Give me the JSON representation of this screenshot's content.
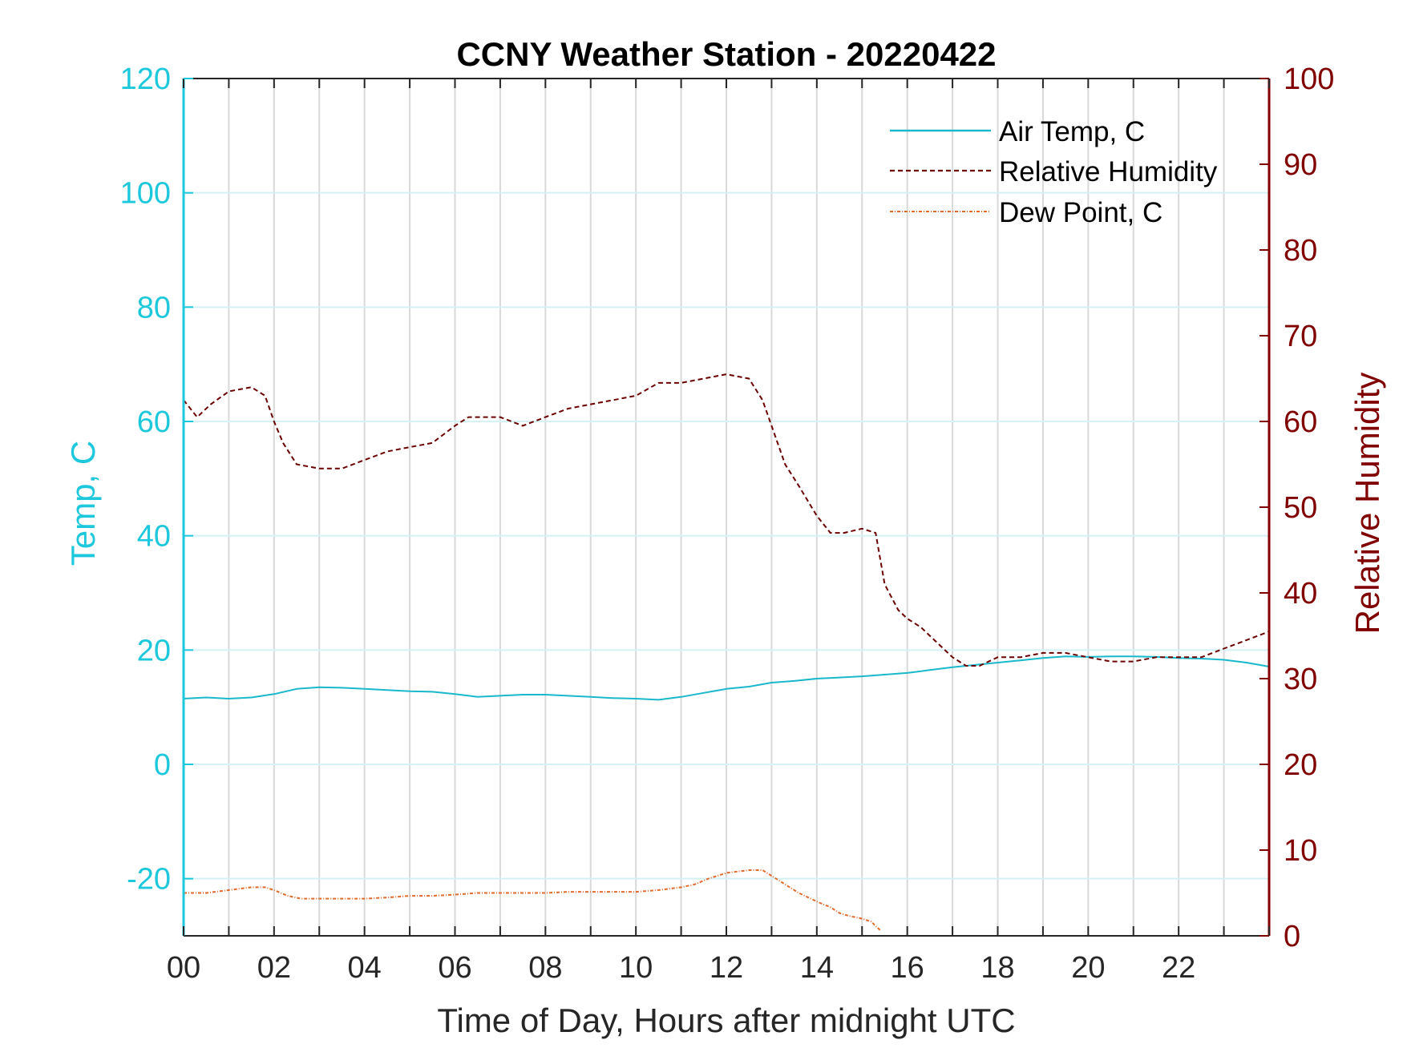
{
  "chart_data": {
    "type": "line",
    "title": "CCNY Weather Station - 20220422",
    "xlabel": "Time of Day, Hours after midnight UTC",
    "ylabel_left": "Temp, C",
    "ylabel_right": "Relative Humidity",
    "xlim": [
      0,
      24
    ],
    "ylim_left": [
      -30,
      120
    ],
    "ylim_right": [
      0,
      100
    ],
    "x_ticks": [
      0,
      2,
      4,
      6,
      8,
      10,
      12,
      14,
      16,
      18,
      20,
      22
    ],
    "x_tick_labels": [
      "00",
      "02",
      "04",
      "06",
      "08",
      "10",
      "12",
      "14",
      "16",
      "18",
      "20",
      "22"
    ],
    "y_left_ticks": [
      -20,
      0,
      20,
      40,
      60,
      80,
      100,
      120
    ],
    "y_left_tick_labels": [
      "-20",
      "0",
      "20",
      "40",
      "60",
      "80",
      "100",
      "120"
    ],
    "y_right_ticks": [
      0,
      10,
      20,
      30,
      40,
      50,
      60,
      70,
      80,
      90,
      100
    ],
    "y_right_tick_labels": [
      "0",
      "10",
      "20",
      "30",
      "40",
      "50",
      "60",
      "70",
      "80",
      "90",
      "100"
    ],
    "grid": "vertical lines every hour, horizontal lines at left-axis ticks",
    "legend_position": "top-right",
    "colors": {
      "left_axis": "#1ec8dc",
      "right_axis": "#800000",
      "air_temp": "#1ab8cc",
      "humidity": "#6b0000",
      "dew_point": "#e06a2a",
      "grid_vertical": "#d9d9d9",
      "grid_horizontal": "#d4f1f6"
    },
    "series": [
      {
        "name": "Air Temp, C",
        "axis": "left",
        "style": "solid",
        "x": [
          0,
          0.5,
          1,
          1.5,
          2,
          2.5,
          3,
          3.5,
          4,
          4.5,
          5,
          5.5,
          6,
          6.5,
          7,
          7.5,
          8,
          8.5,
          9,
          9.5,
          10,
          10.5,
          11,
          11.5,
          12,
          12.5,
          13,
          13.5,
          14,
          14.5,
          15,
          15.5,
          16,
          16.5,
          17,
          17.5,
          18,
          18.5,
          19,
          19.5,
          20,
          20.5,
          21,
          21.5,
          22,
          22.5,
          23,
          23.5,
          24
        ],
        "values": [
          11.5,
          11.7,
          11.5,
          11.7,
          12.3,
          13.2,
          13.5,
          13.4,
          13.2,
          13.0,
          12.8,
          12.7,
          12.3,
          11.8,
          12.0,
          12.2,
          12.2,
          12.0,
          11.8,
          11.6,
          11.5,
          11.3,
          11.8,
          12.5,
          13.2,
          13.6,
          14.3,
          14.6,
          15.0,
          15.2,
          15.4,
          15.7,
          16.0,
          16.5,
          17.0,
          17.4,
          17.8,
          18.2,
          18.6,
          18.9,
          18.8,
          18.9,
          18.9,
          18.8,
          18.6,
          18.5,
          18.3,
          17.8,
          17.1
        ]
      },
      {
        "name": "Relative Humidity",
        "axis": "right",
        "style": "dashed",
        "x": [
          0,
          0.3,
          0.6,
          1,
          1.5,
          1.8,
          2,
          2.2,
          2.5,
          3,
          3.5,
          4,
          4.5,
          5,
          5.5,
          6,
          6.3,
          6.6,
          7,
          7.5,
          8,
          8.5,
          9,
          9.5,
          10,
          10.5,
          11,
          11.5,
          12,
          12.5,
          12.8,
          13,
          13.3,
          13.6,
          14,
          14.3,
          14.6,
          15,
          15.3,
          15.5,
          15.8,
          16,
          16.3,
          16.6,
          17,
          17.3,
          17.6,
          18,
          18.5,
          19,
          19.5,
          20,
          20.5,
          21,
          21.5,
          22,
          22.5,
          23,
          23.5,
          24
        ],
        "values": [
          62.5,
          60.5,
          62.0,
          63.5,
          64.0,
          63.0,
          60.0,
          57.5,
          55.0,
          54.5,
          54.5,
          55.5,
          56.5,
          57.0,
          57.5,
          59.5,
          60.5,
          60.5,
          60.5,
          59.5,
          60.5,
          61.5,
          62.0,
          62.5,
          63.0,
          64.5,
          64.5,
          65.0,
          65.5,
          65.0,
          62.5,
          59.5,
          55.0,
          52.5,
          49.0,
          47.0,
          47.0,
          47.5,
          47.0,
          41.0,
          38.0,
          37.0,
          36.0,
          34.5,
          32.5,
          31.5,
          31.5,
          32.5,
          32.5,
          33.0,
          33.0,
          32.5,
          32.0,
          32.0,
          32.5,
          32.5,
          32.5,
          33.5,
          34.5,
          35.5
        ]
      },
      {
        "name": "Dew Point, C",
        "axis": "left",
        "style": "dash-dot",
        "x": [
          0,
          0.5,
          1,
          1.5,
          1.8,
          2,
          2.3,
          2.6,
          3,
          3.5,
          4,
          4.5,
          5,
          5.5,
          6,
          6.5,
          7,
          7.5,
          8,
          8.5,
          9,
          9.5,
          10,
          10.5,
          11,
          11.3,
          11.6,
          12,
          12.5,
          12.8,
          13,
          13.3,
          13.6,
          14,
          14.3,
          14.5,
          14.7,
          15,
          15.2,
          15.4
        ],
        "values": [
          -22.5,
          -22.5,
          -22.0,
          -21.5,
          -21.5,
          -22.0,
          -23.0,
          -23.5,
          -23.5,
          -23.5,
          -23.5,
          -23.3,
          -23.0,
          -23.0,
          -22.8,
          -22.5,
          -22.5,
          -22.5,
          -22.5,
          -22.3,
          -22.3,
          -22.3,
          -22.3,
          -22.0,
          -21.5,
          -21.0,
          -20.0,
          -19.0,
          -18.5,
          -18.5,
          -19.5,
          -21.0,
          -22.5,
          -24.0,
          -25.0,
          -26.0,
          -26.5,
          -27.0,
          -27.5,
          -29.0
        ]
      }
    ]
  }
}
